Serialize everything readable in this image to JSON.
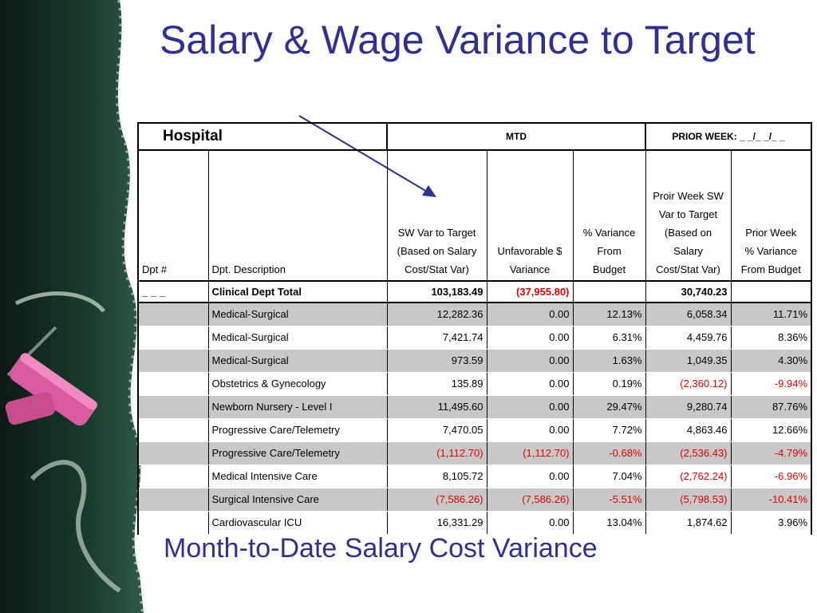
{
  "title": "Salary & Wage Variance to Target",
  "subtitle": "Month-to-Date Salary Cost Variance",
  "colors": {
    "title": "#2e3192",
    "negative": "#e60000",
    "shade": "#c8c8c8"
  },
  "table": {
    "group_headers": {
      "hospital": "Hospital",
      "mtd": "MTD",
      "prior_week": "PRIOR WEEK: _ _/_ _/_ _"
    },
    "column_headers": {
      "dpt_num": "Dpt #",
      "dpt_desc": "Dpt. Description",
      "sw_var_lines": [
        "SW Var to Target",
        "(Based on Salary",
        "Cost/Stat Var)"
      ],
      "unfav_lines": [
        "Unfavorable $",
        "Variance"
      ],
      "pct_var_lines": [
        "% Variance",
        "From",
        "Budget"
      ],
      "prior_sw_lines": [
        "Proir Week SW",
        "Var to Target",
        "(Based on",
        "Salary",
        "Cost/Stat Var)"
      ],
      "prior_pct_lines": [
        "Prior Week",
        "% Variance",
        "From Budget"
      ]
    },
    "total_row": {
      "dpt": "_ _ _",
      "desc": "Clinical Dept Total",
      "sw_var": "103,183.49",
      "unfav": "(37,955.80)",
      "pct_var": "",
      "prior_sw": "30,740.23",
      "prior_pct": ""
    },
    "rows": [
      {
        "desc": "Medical-Surgical",
        "sw_var": "12,282.36",
        "unfav": "0.00",
        "pct_var": "12.13%",
        "prior_sw": "6,058.34",
        "prior_pct": "11.71%"
      },
      {
        "desc": "Medical-Surgical",
        "sw_var": "7,421.74",
        "unfav": "0.00",
        "pct_var": "6.31%",
        "prior_sw": "4,459.76",
        "prior_pct": "8.36%"
      },
      {
        "desc": "Medical-Surgical",
        "sw_var": "973.59",
        "unfav": "0.00",
        "pct_var": "1.63%",
        "prior_sw": "1,049.35",
        "prior_pct": "4.30%"
      },
      {
        "desc": "Obstetrics & Gynecology",
        "sw_var": "135.89",
        "unfav": "0.00",
        "pct_var": "0.19%",
        "prior_sw": "(2,360.12)",
        "prior_pct": "-9.94%"
      },
      {
        "desc": "Newborn Nursery - Level I",
        "sw_var": "11,495.60",
        "unfav": "0.00",
        "pct_var": "29.47%",
        "prior_sw": "9,280.74",
        "prior_pct": "87.76%"
      },
      {
        "desc": "Progressive Care/Telemetry",
        "sw_var": "7,470.05",
        "unfav": "0.00",
        "pct_var": "7.72%",
        "prior_sw": "4,863.46",
        "prior_pct": "12.66%"
      },
      {
        "desc": "Progressive Care/Telemetry",
        "sw_var": "(1,112.70)",
        "unfav": "(1,112.70)",
        "pct_var": "-0.68%",
        "prior_sw": "(2,536.43)",
        "prior_pct": "-4.79%"
      },
      {
        "desc": "Medical Intensive Care",
        "sw_var": "8,105.72",
        "unfav": "0.00",
        "pct_var": "7.04%",
        "prior_sw": "(2,762.24)",
        "prior_pct": "-6.96%"
      },
      {
        "desc": "Surgical Intensive Care",
        "sw_var": "(7,586.26)",
        "unfav": "(7,586.26)",
        "pct_var": "-5.51%",
        "prior_sw": "(5,798.53)",
        "prior_pct": "-10.41%"
      },
      {
        "desc": "Cardiovascular ICU",
        "sw_var": "16,331.29",
        "unfav": "0.00",
        "pct_var": "13.04%",
        "prior_sw": "1,874.62",
        "prior_pct": "3.96%"
      }
    ]
  }
}
